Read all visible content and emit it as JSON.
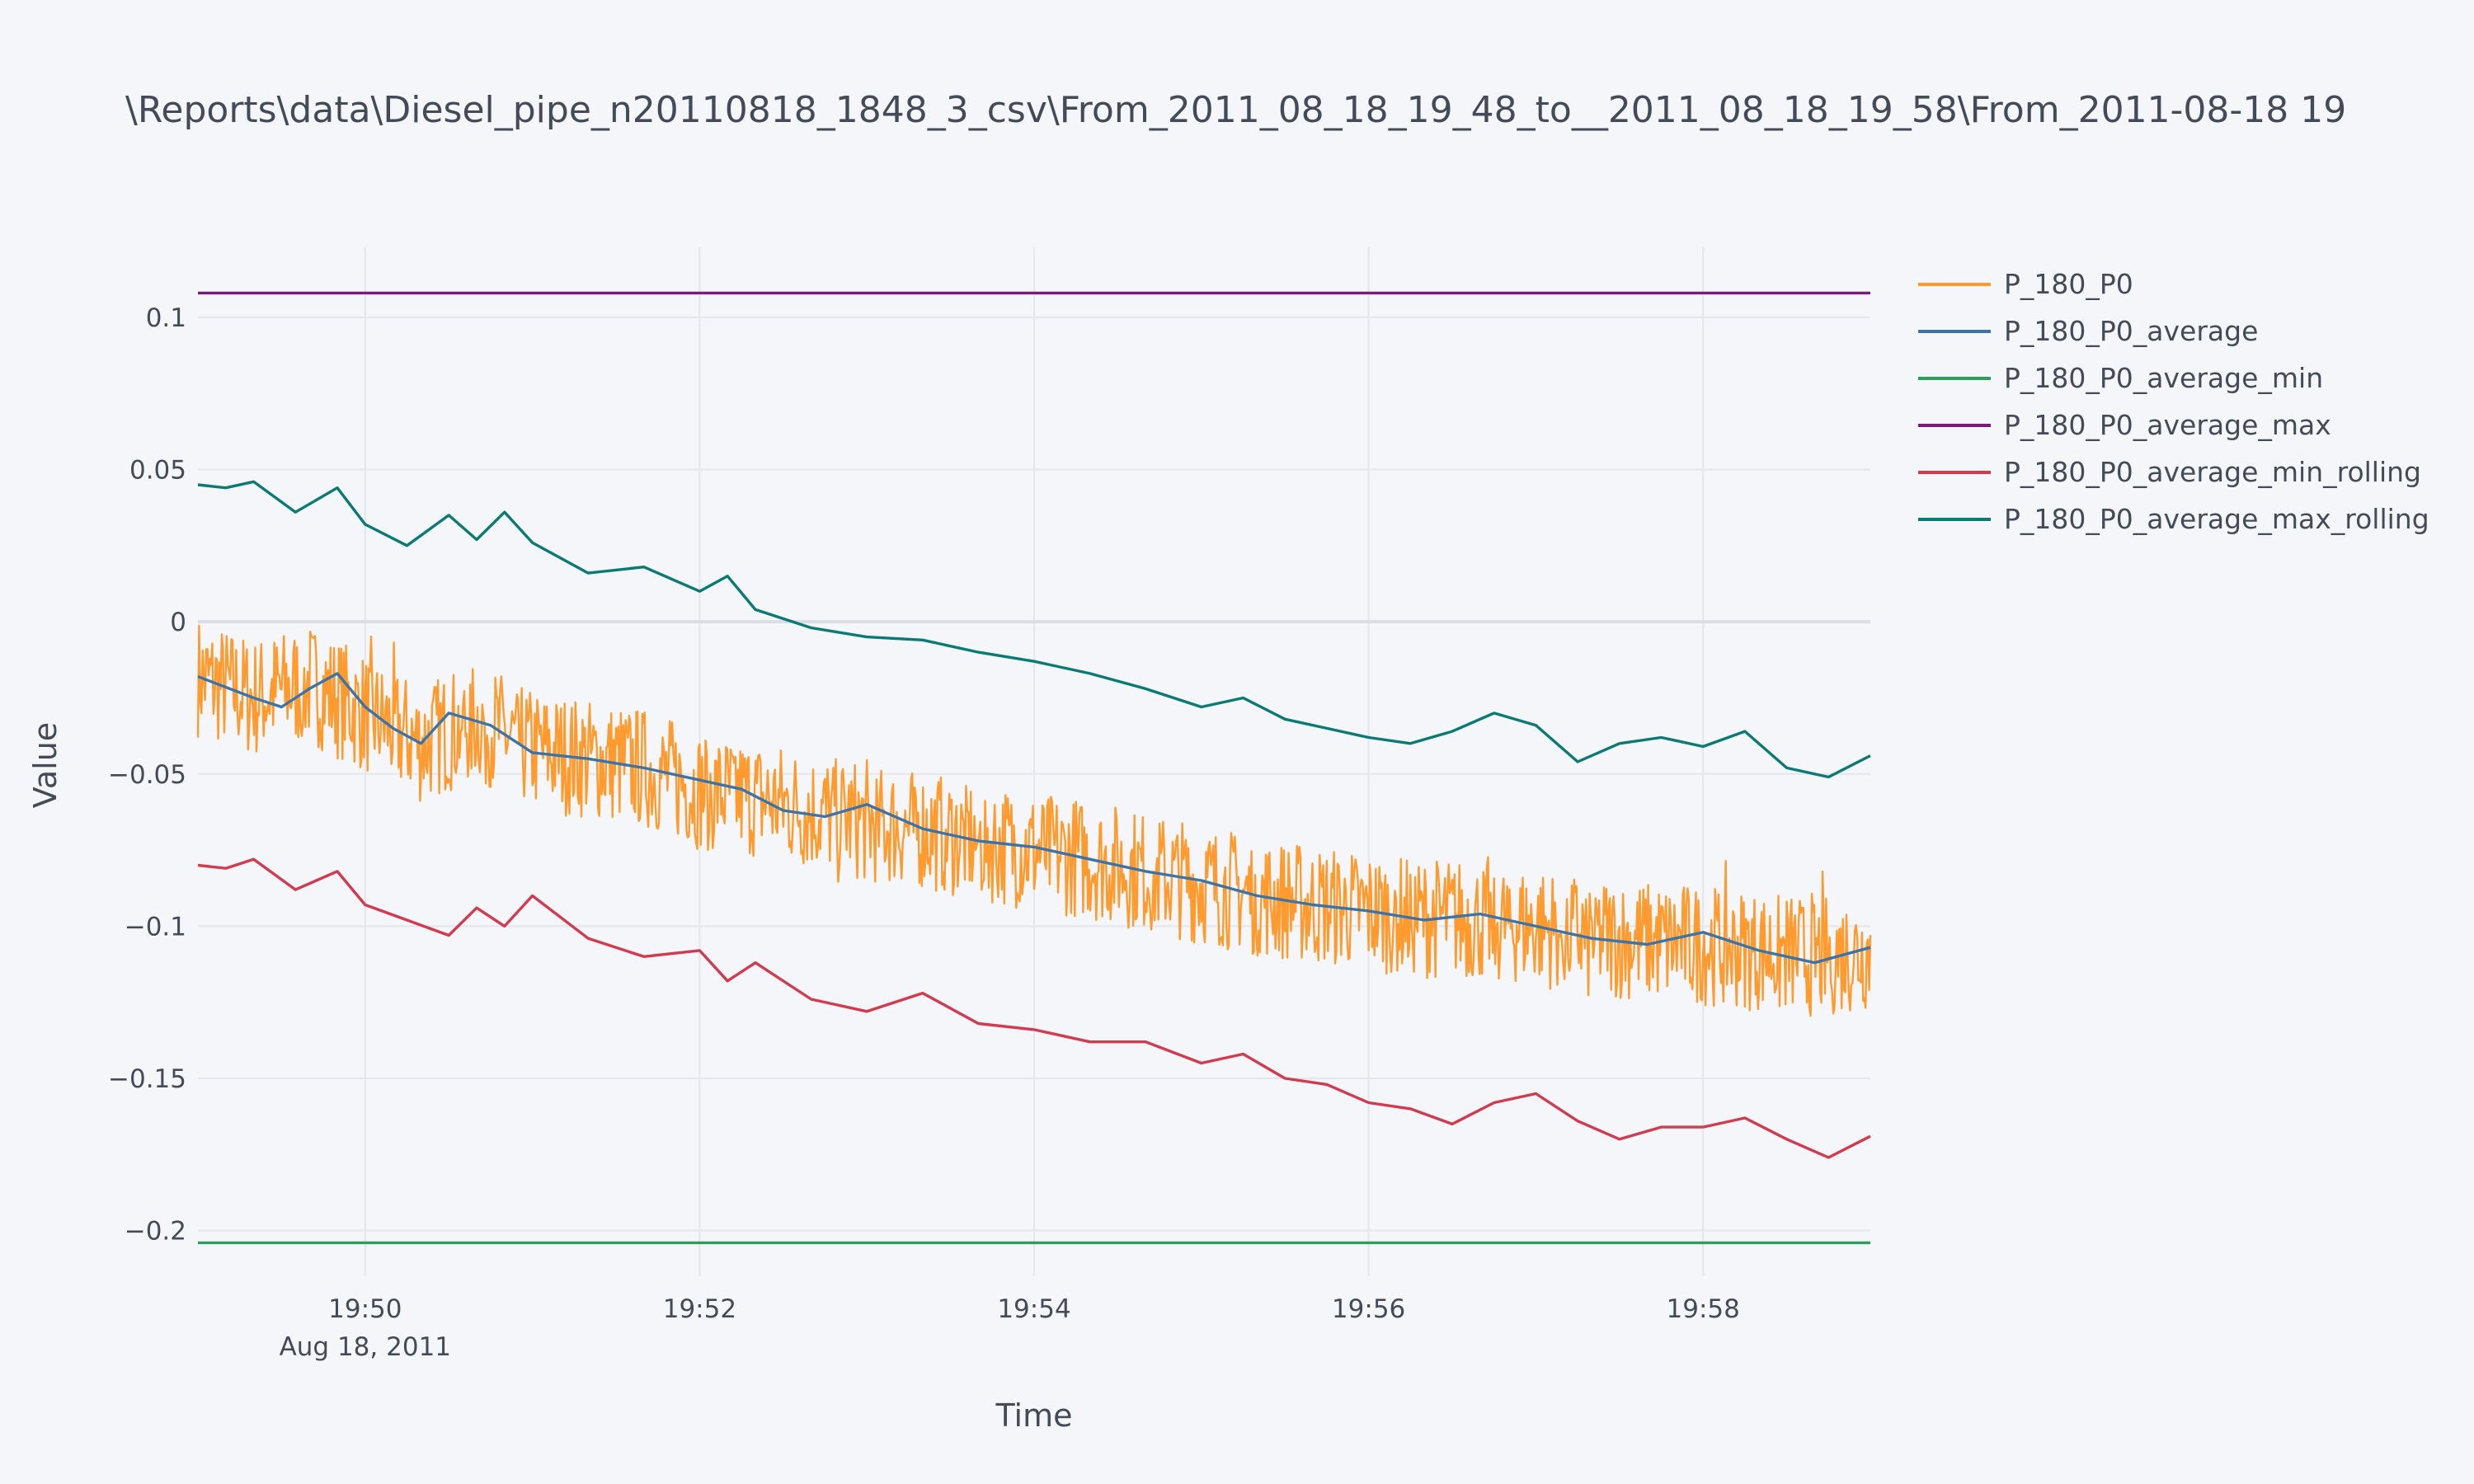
{
  "chart_data": {
    "type": "line",
    "title": "\\Reports\\data\\Diesel_pipe_n20110818_1848_3_csv\\From_2011_08_18_19_48_to__2011_08_18_19_58\\From_2011-08-18 19",
    "xlabel": "Time",
    "ylabel": "Value",
    "xlim": [
      "2011-08-18 19:49:00",
      "2011-08-18 19:59:00"
    ],
    "ylim": [
      -0.215,
      0.123
    ],
    "x_ticks": [
      {
        "t": "2011-08-18 19:50:00",
        "label": "19:50",
        "sublabel": "Aug 18, 2011"
      },
      {
        "t": "2011-08-18 19:52:00",
        "label": "19:52",
        "sublabel": ""
      },
      {
        "t": "2011-08-18 19:54:00",
        "label": "19:54",
        "sublabel": ""
      },
      {
        "t": "2011-08-18 19:56:00",
        "label": "19:56",
        "sublabel": ""
      },
      {
        "t": "2011-08-18 19:58:00",
        "label": "19:58",
        "sublabel": ""
      }
    ],
    "y_ticks": [
      {
        "v": 0.1,
        "label": "0.1"
      },
      {
        "v": 0.05,
        "label": "0.05"
      },
      {
        "v": 0,
        "label": "0"
      },
      {
        "v": -0.05,
        "label": "−0.05"
      },
      {
        "v": -0.1,
        "label": "−0.1"
      },
      {
        "v": -0.15,
        "label": "−0.15"
      },
      {
        "v": -0.2,
        "label": "−0.2"
      }
    ],
    "grid": true,
    "legend_position": "right",
    "series": [
      {
        "name": "P_180_P0",
        "color": "#ff9a2e",
        "x": [
          "19:49:00",
          "19:49:20",
          "19:49:40",
          "19:50:00",
          "19:50:20",
          "19:50:40",
          "19:51:00",
          "19:51:20",
          "19:51:40",
          "19:52:00",
          "19:52:20",
          "19:52:40",
          "19:53:00",
          "19:53:20",
          "19:53:40",
          "19:54:00",
          "19:54:20",
          "19:54:40",
          "19:55:00",
          "19:55:20",
          "19:55:40",
          "19:56:00",
          "19:56:20",
          "19:56:40",
          "19:57:00",
          "19:57:20",
          "19:57:40",
          "19:58:00",
          "19:58:20",
          "19:58:40",
          "19:59:00"
        ],
        "y": [
          -0.018,
          -0.025,
          -0.02,
          -0.03,
          -0.04,
          -0.032,
          -0.042,
          -0.045,
          -0.048,
          -0.055,
          -0.058,
          -0.062,
          -0.066,
          -0.068,
          -0.072,
          -0.075,
          -0.078,
          -0.082,
          -0.086,
          -0.09,
          -0.093,
          -0.095,
          -0.097,
          -0.098,
          -0.1,
          -0.103,
          -0.105,
          -0.106,
          -0.108,
          -0.11,
          -0.108
        ],
        "noise_amplitude": 0.02
      },
      {
        "name": "P_180_P0_average",
        "color": "#3d74a8",
        "x": [
          "19:49:00",
          "19:49:20",
          "19:49:30",
          "19:49:40",
          "19:49:50",
          "19:50:00",
          "19:50:10",
          "19:50:20",
          "19:50:30",
          "19:50:45",
          "19:51:00",
          "19:51:20",
          "19:51:40",
          "19:52:00",
          "19:52:15",
          "19:52:30",
          "19:52:45",
          "19:53:00",
          "19:53:20",
          "19:53:40",
          "19:54:00",
          "19:54:20",
          "19:54:40",
          "19:55:00",
          "19:55:20",
          "19:55:40",
          "19:56:00",
          "19:56:20",
          "19:56:40",
          "19:57:00",
          "19:57:20",
          "19:57:40",
          "19:58:00",
          "19:58:20",
          "19:58:40",
          "19:59:00"
        ],
        "y": [
          -0.018,
          -0.025,
          -0.028,
          -0.022,
          -0.017,
          -0.028,
          -0.035,
          -0.04,
          -0.03,
          -0.034,
          -0.043,
          -0.045,
          -0.048,
          -0.052,
          -0.055,
          -0.062,
          -0.064,
          -0.06,
          -0.068,
          -0.072,
          -0.074,
          -0.078,
          -0.082,
          -0.085,
          -0.09,
          -0.093,
          -0.095,
          -0.098,
          -0.096,
          -0.1,
          -0.104,
          -0.106,
          -0.102,
          -0.108,
          -0.112,
          -0.107
        ]
      },
      {
        "name": "P_180_P0_average_min",
        "color": "#2ca05a",
        "x": [
          "19:49:00",
          "19:59:00"
        ],
        "y": [
          -0.204,
          -0.204
        ]
      },
      {
        "name": "P_180_P0_average_max",
        "color": "#7a1a7a",
        "x": [
          "19:49:00",
          "19:59:00"
        ],
        "y": [
          0.108,
          0.108
        ]
      },
      {
        "name": "P_180_P0_average_min_rolling",
        "color": "#d23a50",
        "x": [
          "19:49:00",
          "19:49:10",
          "19:49:20",
          "19:49:35",
          "19:49:50",
          "19:50:00",
          "19:50:15",
          "19:50:30",
          "19:50:40",
          "19:50:50",
          "19:51:00",
          "19:51:20",
          "19:51:40",
          "19:52:00",
          "19:52:10",
          "19:52:20",
          "19:52:40",
          "19:53:00",
          "19:53:20",
          "19:53:40",
          "19:54:00",
          "19:54:20",
          "19:54:40",
          "19:55:00",
          "19:55:15",
          "19:55:30",
          "19:55:45",
          "19:56:00",
          "19:56:15",
          "19:56:30",
          "19:56:45",
          "19:57:00",
          "19:57:15",
          "19:57:30",
          "19:57:45",
          "19:58:00",
          "19:58:15",
          "19:58:30",
          "19:58:45",
          "19:59:00"
        ],
        "y": [
          -0.08,
          -0.081,
          -0.078,
          -0.088,
          -0.082,
          -0.093,
          -0.098,
          -0.103,
          -0.094,
          -0.1,
          -0.09,
          -0.104,
          -0.11,
          -0.108,
          -0.118,
          -0.112,
          -0.124,
          -0.128,
          -0.122,
          -0.132,
          -0.134,
          -0.138,
          -0.138,
          -0.145,
          -0.142,
          -0.15,
          -0.152,
          -0.158,
          -0.16,
          -0.165,
          -0.158,
          -0.155,
          -0.164,
          -0.17,
          -0.166,
          -0.166,
          -0.163,
          -0.17,
          -0.176,
          -0.169
        ]
      },
      {
        "name": "P_180_P0_average_max_rolling",
        "color": "#0b7a75",
        "x": [
          "19:49:00",
          "19:49:10",
          "19:49:20",
          "19:49:35",
          "19:49:50",
          "19:50:00",
          "19:50:15",
          "19:50:30",
          "19:50:40",
          "19:50:50",
          "19:51:00",
          "19:51:20",
          "19:51:40",
          "19:52:00",
          "19:52:10",
          "19:52:20",
          "19:52:40",
          "19:53:00",
          "19:53:20",
          "19:53:40",
          "19:54:00",
          "19:54:20",
          "19:54:40",
          "19:55:00",
          "19:55:15",
          "19:55:30",
          "19:55:45",
          "19:56:00",
          "19:56:15",
          "19:56:30",
          "19:56:45",
          "19:57:00",
          "19:57:15",
          "19:57:30",
          "19:57:45",
          "19:58:00",
          "19:58:15",
          "19:58:30",
          "19:58:45",
          "19:59:00"
        ],
        "y": [
          0.045,
          0.044,
          0.046,
          0.036,
          0.044,
          0.032,
          0.025,
          0.035,
          0.027,
          0.036,
          0.026,
          0.016,
          0.018,
          0.01,
          0.015,
          0.004,
          -0.002,
          -0.005,
          -0.006,
          -0.01,
          -0.013,
          -0.017,
          -0.022,
          -0.028,
          -0.025,
          -0.032,
          -0.035,
          -0.038,
          -0.04,
          -0.036,
          -0.03,
          -0.034,
          -0.046,
          -0.04,
          -0.038,
          -0.041,
          -0.036,
          -0.048,
          -0.051,
          -0.044
        ]
      }
    ]
  }
}
